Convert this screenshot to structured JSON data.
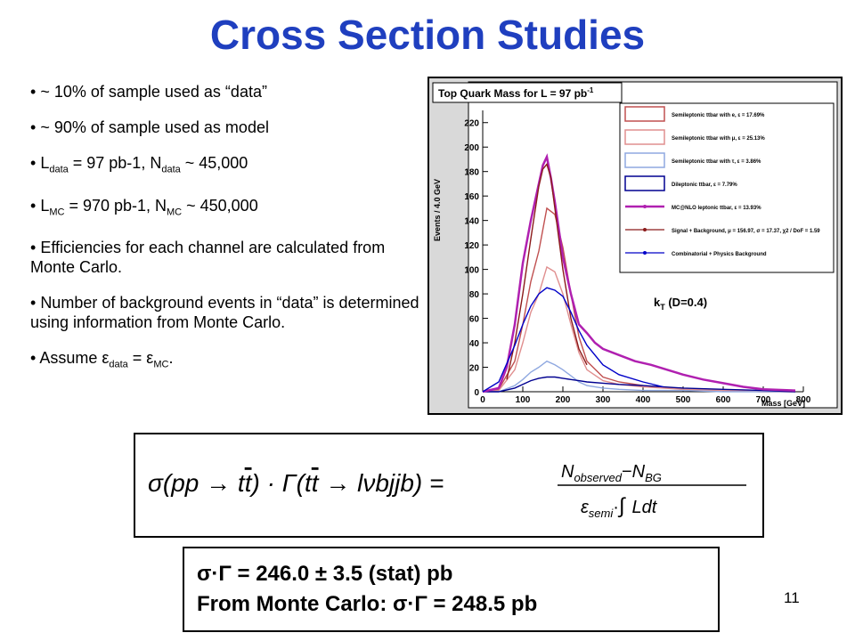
{
  "title": "Cross Section Studies",
  "bullets": [
    {
      "pre": "~ 10% of sample used as “data”"
    },
    {
      "pre": "~ 90% of sample used as model"
    },
    {
      "pre": "L",
      "sub1": "data",
      "mid": " = 97 pb-1, N",
      "sub2": "data",
      "post": " ~ 45,000"
    },
    {
      "pre": "L",
      "sub1": "MC",
      "mid": " = 970 pb-1, N",
      "sub2": "MC",
      "post": " ~ 450,000"
    },
    {
      "pre": "Efficiencies for each channel are calculated from Monte Carlo."
    },
    {
      "pre": "Number of background events in “data” is determined using information from Monte Carlo."
    },
    {
      "pre": "Assume ε",
      "sub1": "data",
      "mid": " = ε",
      "sub2": "MC",
      "post": "."
    }
  ],
  "chart_data": {
    "type": "line",
    "title": "Top Quark Mass for L = 97 pb",
    "title_sup": "-1",
    "xlabel": "Mass [GeV]",
    "ylabel": "Events / 4.0 GeV",
    "xlim": [
      0,
      800
    ],
    "ylim": [
      0,
      230
    ],
    "x_ticks": [
      0,
      100,
      200,
      300,
      400,
      500,
      600,
      700,
      800
    ],
    "y_ticks": [
      0,
      20,
      40,
      60,
      80,
      100,
      120,
      140,
      160,
      180,
      200,
      220
    ],
    "annotation": "k",
    "annotation_sub": "T",
    "annotation_post": " (D=0.4)",
    "grid": false,
    "legend_position": "top-right",
    "series": [
      {
        "name": "Semileptonic ttbar with e, ε = 17.69%",
        "color": "#c05050",
        "x": [
          0,
          40,
          80,
          100,
          120,
          140,
          160,
          180,
          200,
          220,
          240,
          260,
          300,
          340,
          400,
          500,
          600,
          700,
          780
        ],
        "y": [
          0,
          2,
          25,
          55,
          90,
          115,
          150,
          145,
          118,
          80,
          45,
          25,
          12,
          8,
          5,
          2,
          1,
          0,
          0
        ]
      },
      {
        "name": "Semileptonic ttbar with μ, ε = 25.13%",
        "color": "#e08f8f",
        "x": [
          0,
          40,
          80,
          100,
          120,
          140,
          160,
          180,
          200,
          220,
          240,
          260,
          300,
          340,
          400,
          500,
          600,
          700,
          780
        ],
        "y": [
          0,
          1,
          18,
          40,
          65,
          80,
          102,
          98,
          80,
          55,
          32,
          18,
          9,
          6,
          4,
          2,
          1,
          0,
          0
        ]
      },
      {
        "name": "Semileptonic ttbar with τ, ε = 3.86%",
        "color": "#8fa8e0",
        "x": [
          0,
          40,
          80,
          100,
          120,
          140,
          160,
          180,
          200,
          220,
          240,
          260,
          300,
          340,
          400,
          500,
          600,
          700,
          780
        ],
        "y": [
          0,
          0,
          5,
          10,
          16,
          20,
          25,
          22,
          18,
          13,
          8,
          5,
          3,
          2,
          1,
          1,
          0,
          0,
          0
        ]
      },
      {
        "name": "Dileptonic ttbar, ε = 7.79%",
        "color": "#000090",
        "x": [
          0,
          40,
          80,
          100,
          120,
          140,
          160,
          180,
          200,
          220,
          240,
          260,
          300,
          340,
          400,
          500,
          600,
          700,
          780
        ],
        "y": [
          0,
          0,
          3,
          6,
          9,
          11,
          12,
          12,
          11,
          10,
          9,
          8,
          7,
          6,
          5,
          3,
          2,
          1,
          0
        ]
      },
      {
        "name": "MC@NLO leptonic ttbar, ε = 13.93%",
        "color": "#b020b0",
        "x": [
          0,
          40,
          60,
          80,
          100,
          120,
          140,
          150,
          160,
          170,
          180,
          200,
          220,
          240,
          260,
          280,
          300,
          340,
          380,
          420,
          460,
          500,
          550,
          600,
          650,
          700,
          780
        ],
        "y": [
          0,
          3,
          20,
          55,
          105,
          140,
          170,
          185,
          192,
          175,
          155,
          110,
          80,
          55,
          48,
          40,
          35,
          30,
          25,
          22,
          18,
          14,
          10,
          7,
          4,
          2,
          1
        ]
      },
      {
        "name": "Signal + Background, μ = 156.97, σ = 17.37, χ2 / DoF = 1.59",
        "color": "#8b1a1a",
        "x": [
          60,
          80,
          100,
          120,
          140,
          150,
          160,
          170,
          180,
          200,
          220,
          240,
          260
        ],
        "y": [
          10,
          40,
          80,
          125,
          168,
          182,
          186,
          175,
          150,
          100,
          60,
          35,
          22
        ]
      },
      {
        "name": "Combinatorial + Physics Background",
        "color": "#0000c8",
        "x": [
          0,
          40,
          80,
          100,
          120,
          140,
          160,
          180,
          200,
          220,
          240,
          260,
          300,
          340,
          400,
          450
        ],
        "y": [
          0,
          8,
          38,
          55,
          70,
          80,
          85,
          83,
          78,
          65,
          50,
          38,
          22,
          14,
          8,
          4
        ]
      }
    ]
  },
  "formula": {
    "lhs_a": "σ(pp → t",
    "lhs_tbar": "t",
    "lhs_b": ") · Γ(t",
    "lhs_tbar2": "t",
    "lhs_c": " → lνbjjb) =",
    "num_a": "N",
    "num_a_sub": "observed",
    "num_minus": "−",
    "num_b": "N",
    "num_b_sub": "BG",
    "den_a": "ε",
    "den_a_sub": "semi",
    "den_dot": "·",
    "den_int": "∫",
    "den_b": "Ldt"
  },
  "results": {
    "line1": "σ·Γ = 246.0 ± 3.5 (stat) pb",
    "line2": "From Monte Carlo: σ·Γ = 248.5 pb"
  },
  "page_number": "11"
}
